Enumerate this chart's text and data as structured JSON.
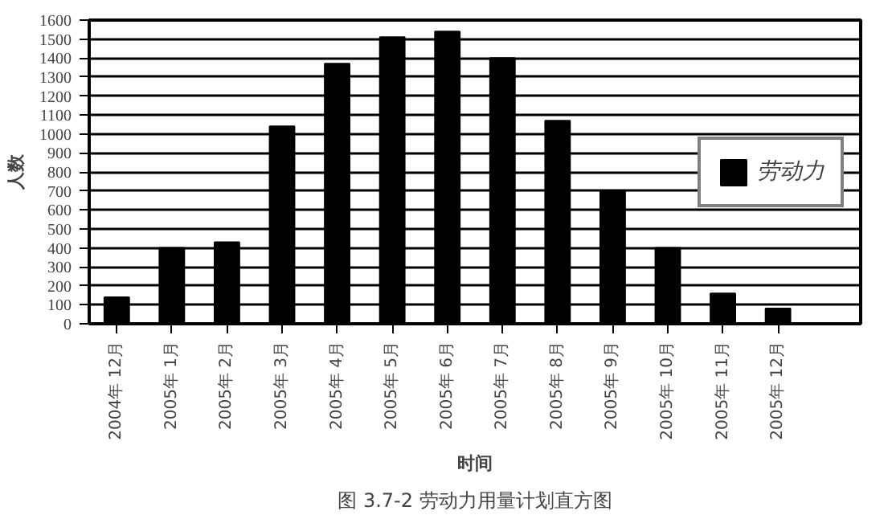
{
  "chart_data": {
    "type": "bar",
    "title": "图 3.7-2 劳动力用量计划直方图",
    "xlabel": "时间",
    "ylabel": "人数",
    "categories": [
      "2004年 12月",
      "2005年 1月",
      "2005年 2月",
      "2005年 3月",
      "2005年 4月",
      "2005年 5月",
      "2005年 6月",
      "2005年 7月",
      "2005年 8月",
      "2005年 9月",
      "2005年 10月",
      "2005年 11月",
      "2005年 12月"
    ],
    "series": [
      {
        "name": "劳动力",
        "color": "#000000",
        "values": [
          140,
          400,
          430,
          1040,
          1370,
          1510,
          1540,
          1400,
          1070,
          700,
          400,
          160,
          80
        ]
      }
    ],
    "ylim": [
      0,
      1600
    ],
    "yticks": [
      0,
      100,
      200,
      300,
      400,
      500,
      600,
      700,
      800,
      900,
      1000,
      1100,
      1200,
      1300,
      1400,
      1500,
      1600
    ],
    "grid": "y",
    "legend": "right"
  }
}
